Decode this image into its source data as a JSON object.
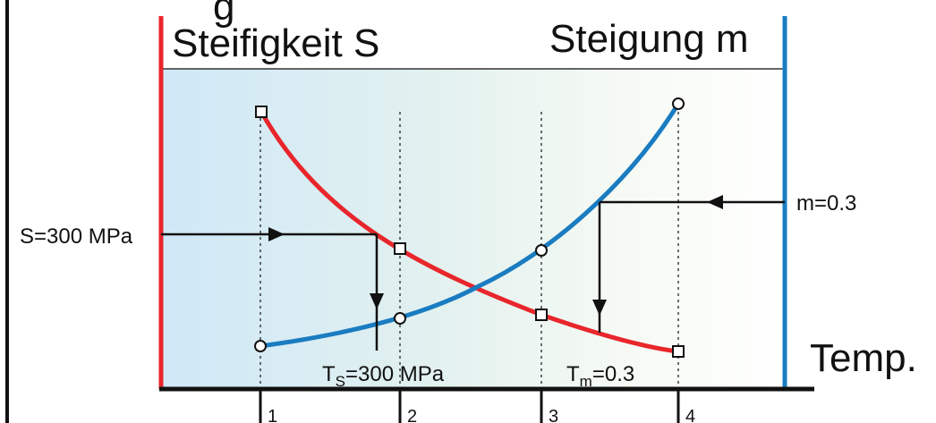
{
  "header": {
    "title_fragment": "g",
    "left_heading": "Steifigkeit S",
    "right_heading": "Steigung m"
  },
  "annotations": {
    "s_threshold": "S=300 MPa",
    "m_threshold": "m=0.3",
    "ts_main": "T",
    "ts_sub": "S",
    "ts_rest": "=300 MPa",
    "tm_main": "T",
    "tm_sub": "m",
    "tm_rest": "=0.3"
  },
  "axis": {
    "x_label": "Temp.",
    "ticks": [
      "1",
      "2",
      "3",
      "4"
    ]
  },
  "colors": {
    "stiffness": "#e8262b",
    "slope": "#1a7cc1",
    "background_left": "#cfe8f7",
    "axis": "#111111"
  }
}
